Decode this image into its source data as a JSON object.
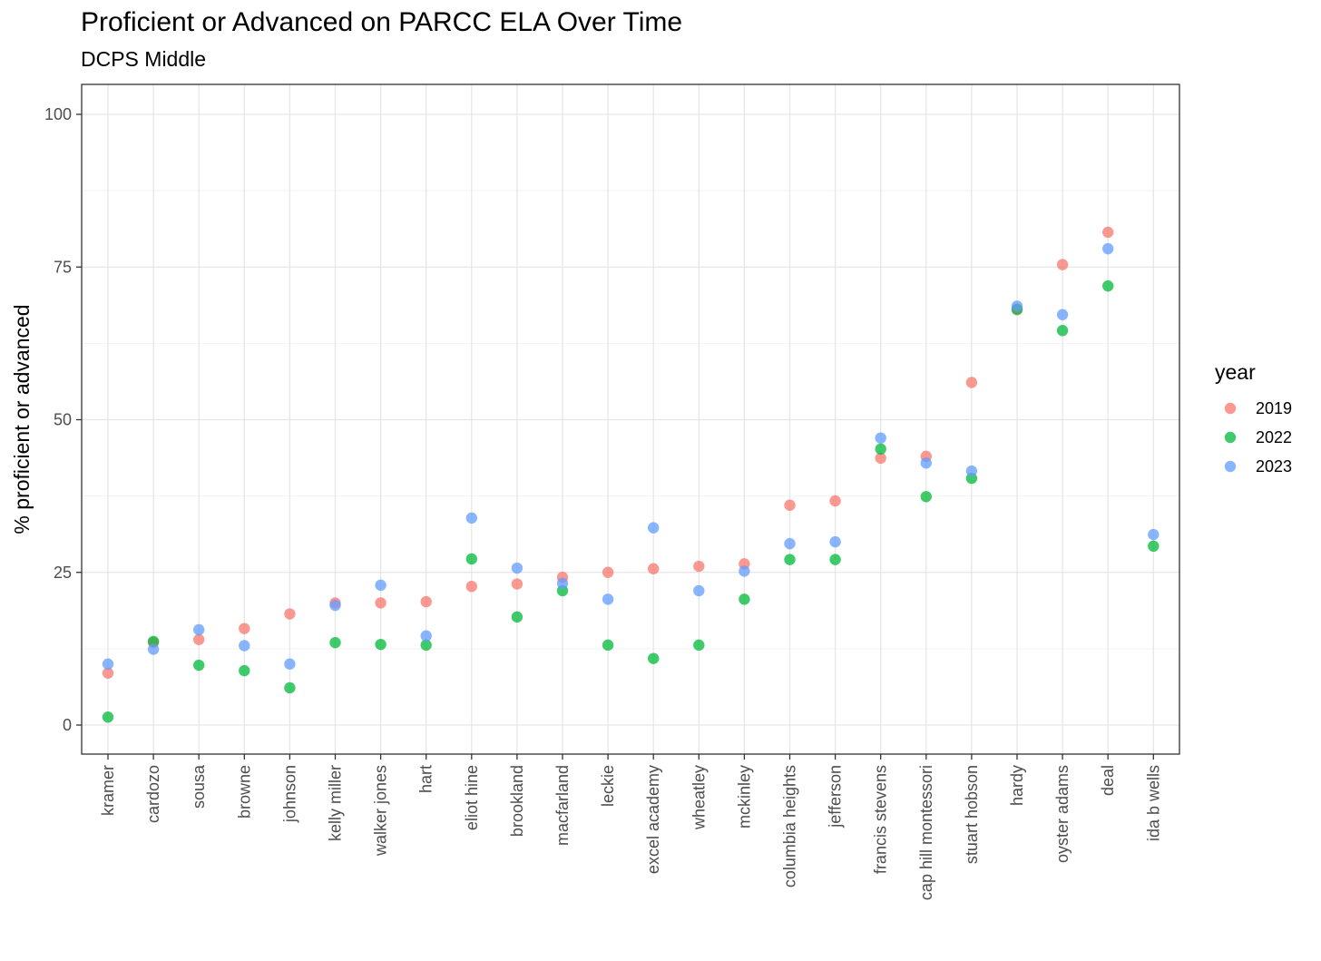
{
  "chart_data": {
    "type": "scatter",
    "title": "Proficient or Advanced on PARCC ELA Over Time",
    "subtitle": "DCPS Middle",
    "xlabel": "",
    "ylabel": "% proficient or advanced",
    "ylim": [
      -5,
      105
    ],
    "yticks": [
      0,
      25,
      50,
      75,
      100
    ],
    "grid": true,
    "legend": {
      "title": "year",
      "placement": "right"
    },
    "categories": [
      "kramer",
      "cardozo",
      "sousa",
      "browne",
      "johnson",
      "kelly miller",
      "walker jones",
      "hart",
      "eliot hine",
      "brookland",
      "macfarland",
      "leckie",
      "excel academy",
      "wheatley",
      "mckinley",
      "columbia heights",
      "jefferson",
      "francis stevens",
      "cap hill montessori",
      "stuart hobson",
      "hardy",
      "oyster adams",
      "deal",
      "ida b wells"
    ],
    "series": [
      {
        "name": "2019",
        "color": "#F8766D",
        "values": [
          8.5,
          13.5,
          14.0,
          15.8,
          18.2,
          20.0,
          20.0,
          20.2,
          22.7,
          23.1,
          24.2,
          25.0,
          25.6,
          26.0,
          26.4,
          36.0,
          36.7,
          43.7,
          44.0,
          56.1,
          68.0,
          75.4,
          80.7,
          null
        ]
      },
      {
        "name": "2022",
        "color": "#00BA38",
        "values": [
          1.3,
          13.7,
          9.8,
          8.9,
          6.1,
          13.5,
          13.2,
          13.1,
          27.2,
          17.7,
          22.0,
          13.1,
          10.9,
          13.1,
          20.6,
          27.1,
          27.1,
          45.2,
          37.4,
          40.4,
          68.1,
          64.6,
          71.9,
          29.3
        ]
      },
      {
        "name": "2023",
        "color": "#619CFF",
        "values": [
          10.0,
          12.4,
          15.6,
          13.0,
          10.0,
          19.6,
          22.9,
          14.6,
          33.9,
          25.7,
          23.2,
          20.6,
          32.3,
          22.0,
          25.2,
          29.7,
          30.0,
          47.0,
          42.9,
          41.6,
          68.6,
          67.2,
          78.0,
          31.2
        ]
      }
    ]
  }
}
